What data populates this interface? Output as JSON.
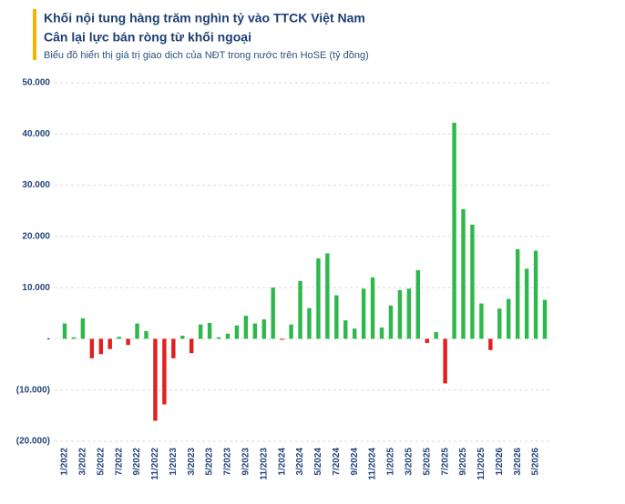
{
  "chart_data": {
    "type": "bar",
    "title": [
      "Khối nội tung hàng trăm nghìn tỷ vào TTCK Việt Nam",
      "Cân lại lực bán ròng từ khối ngoại"
    ],
    "subtitle": "Biểu đồ hiển thị giá trị giao dịch của NĐT trong nước trên HoSE (tỷ đồng)",
    "categories": [
      "1/2022",
      null,
      "3/2022",
      null,
      "5/2022",
      null,
      "7/2022",
      null,
      "9/2022",
      null,
      "11/2022",
      null,
      "1/2023",
      null,
      "3/2023",
      null,
      "5/2023",
      null,
      "7/2023",
      null,
      "9/2023",
      null,
      "11/2023",
      null,
      "1/2024",
      null,
      "3/2024",
      null,
      "5/2024",
      null,
      "7/2024",
      null,
      "9/2024",
      null,
      "11/2024",
      null,
      "1/2025",
      null,
      "3/2025",
      null,
      "5/2025",
      null,
      "7/2025",
      null,
      "9/2025",
      null,
      "11/2025",
      null,
      "1/2026",
      null,
      "3/2026",
      null,
      "5/2026",
      null
    ],
    "values": [
      3000,
      300,
      4000,
      -3800,
      -3000,
      -2000,
      400,
      -1200,
      3000,
      1500,
      -16000,
      -12800,
      -3800,
      600,
      -2800,
      2800,
      3100,
      300,
      1000,
      2600,
      4500,
      3000,
      3800,
      10000,
      -200,
      2800,
      11300,
      6000,
      15700,
      16700,
      8500,
      3600,
      2000,
      9800,
      12000,
      2200,
      6500,
      9500,
      9800,
      13400,
      -800,
      1300,
      -8700,
      42200,
      25300,
      22300,
      6900,
      -2200,
      5900,
      7800,
      17500,
      13700,
      17200,
      7600
    ],
    "positive_color": "#2eb84b",
    "negative_color": "#e0201f",
    "ylim": [
      -20000,
      50000
    ],
    "yticks": [
      {
        "value": -20000,
        "label": "(20.000)"
      },
      {
        "value": -10000,
        "label": "(10.000)"
      },
      {
        "value": 0,
        "label": "-"
      },
      {
        "value": 10000,
        "label": "10.000"
      },
      {
        "value": 20000,
        "label": "20.000"
      },
      {
        "value": 30000,
        "label": "30.000"
      },
      {
        "value": 40000,
        "label": "40.000"
      },
      {
        "value": 50000,
        "label": "50.000"
      }
    ],
    "grid": true
  }
}
